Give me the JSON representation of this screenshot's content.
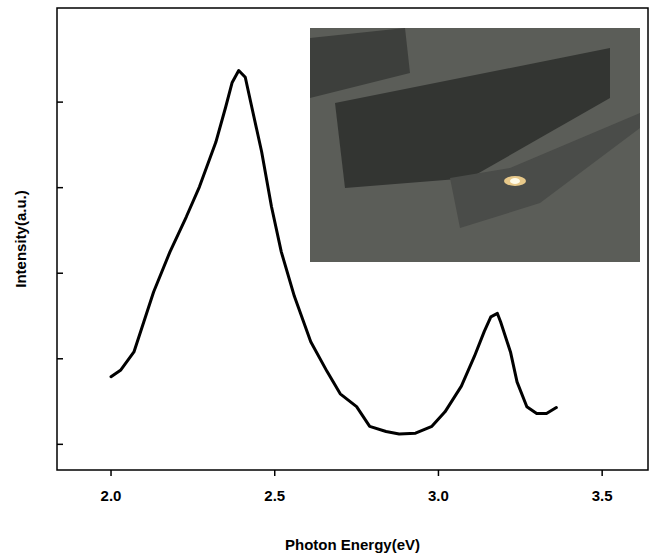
{
  "chart_data": {
    "type": "line",
    "x_label": "Photon Energy(eV)",
    "y_label": "Intensity(a.u.)",
    "x": [
      2.0,
      2.03,
      2.07,
      2.1,
      2.13,
      2.18,
      2.23,
      2.27,
      2.32,
      2.35,
      2.37,
      2.39,
      2.41,
      2.43,
      2.46,
      2.49,
      2.52,
      2.56,
      2.61,
      2.66,
      2.7,
      2.75,
      2.79,
      2.84,
      2.88,
      2.93,
      2.98,
      3.02,
      3.07,
      3.11,
      3.14,
      3.16,
      3.18,
      3.19,
      3.22,
      3.24,
      3.27,
      3.3,
      3.33,
      3.36
    ],
    "values": [
      0.79,
      0.87,
      1.08,
      1.43,
      1.78,
      2.25,
      2.66,
      3.01,
      3.53,
      3.94,
      4.23,
      4.37,
      4.29,
      3.94,
      3.42,
      2.78,
      2.25,
      1.73,
      1.2,
      0.85,
      0.59,
      0.44,
      0.21,
      0.15,
      0.12,
      0.13,
      0.21,
      0.38,
      0.68,
      1.03,
      1.32,
      1.49,
      1.53,
      1.43,
      1.08,
      0.73,
      0.44,
      0.36,
      0.36,
      0.43
    ],
    "color": "#000000",
    "xlim": [
      1.835,
      3.64
    ],
    "ylim": [
      -0.3,
      5.1
    ],
    "xticks": [
      {
        "value": 2,
        "label": "2.0"
      },
      2.5,
      {
        "value": 3,
        "label": "3.0"
      },
      3.5
    ],
    "yticks": [
      0,
      1,
      2,
      3,
      4
    ],
    "tick_labels": "x",
    "grid": false
  }
}
